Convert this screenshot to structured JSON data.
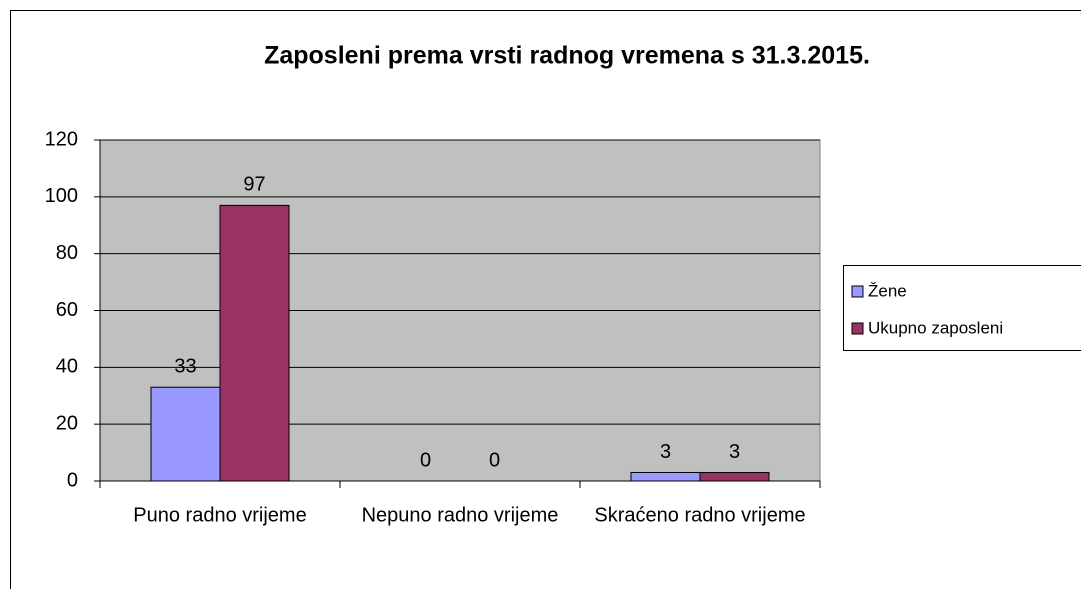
{
  "chart_data": {
    "type": "bar",
    "title": "Zaposleni prema vrsti radnog vremena s 31.3.2015.",
    "categories": [
      "Puno radno vrijeme",
      "Nepuno radno vrijeme",
      "Skraćeno radno vrijeme"
    ],
    "series": [
      {
        "name": "Žene",
        "color": "#9999ff",
        "values": [
          33,
          0,
          3
        ]
      },
      {
        "name": "Ukupno zaposleni",
        "color": "#993366",
        "values": [
          97,
          0,
          3
        ]
      }
    ],
    "ylim": [
      0,
      120
    ],
    "yticks": [
      0,
      20,
      40,
      60,
      80,
      100,
      120
    ],
    "grid": true,
    "legend": "right"
  }
}
